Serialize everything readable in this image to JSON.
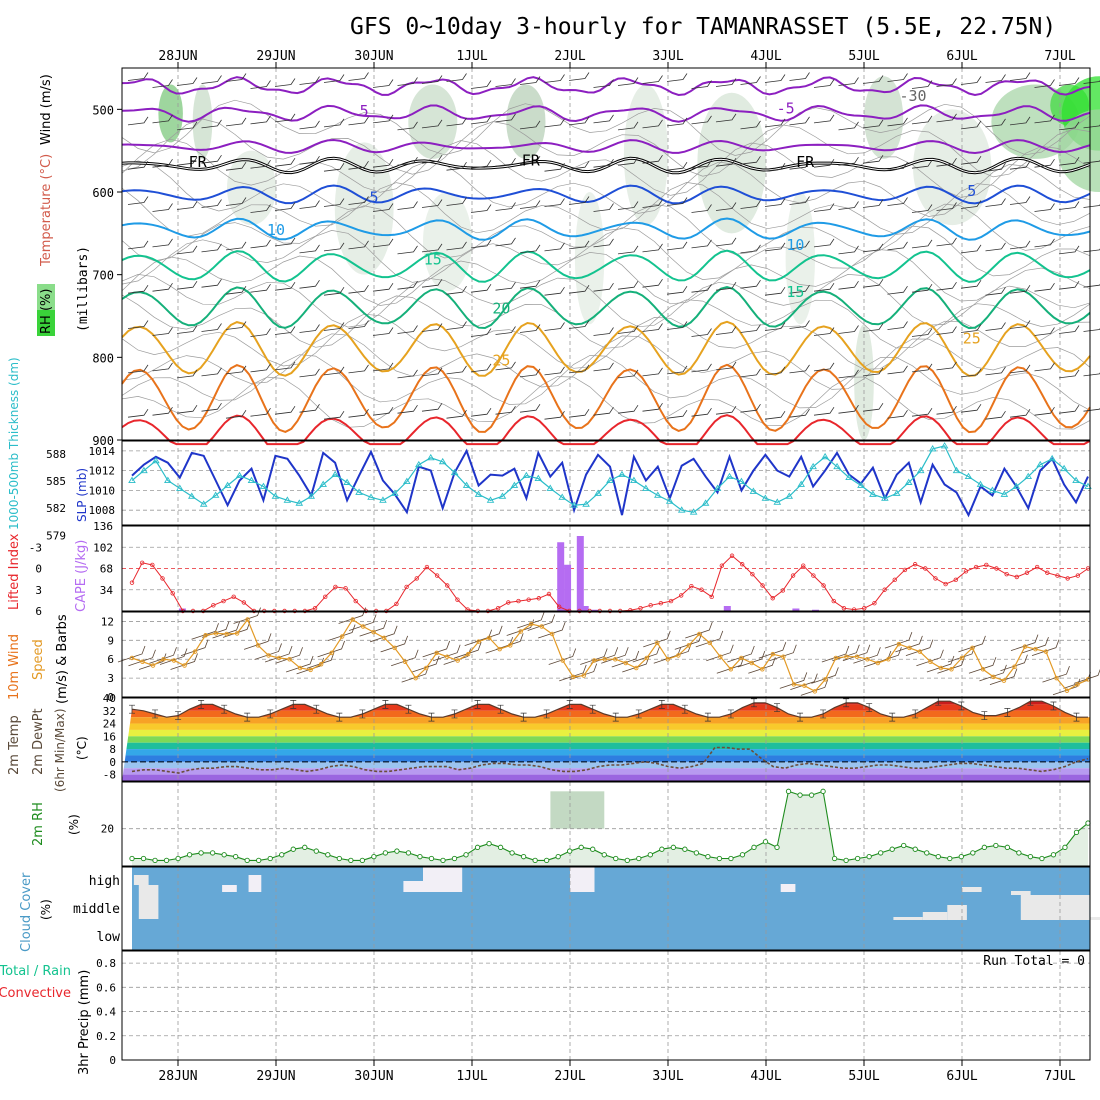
{
  "title": "GFS 0~10day 3-hourly for TAMANRASSET (5.5E, 22.75N)",
  "colors": {
    "purple": "#8c1fc0",
    "black": "#000000",
    "blue5": "#1f4fd6",
    "blue10": "#1f9be6",
    "green15": "#13c38f",
    "green20": "#15b07a",
    "orange25": "#e6a21f",
    "orange30": "#e8731b",
    "red": "#e8262c",
    "cyan": "#2bbdc9",
    "slpblue": "#1f35c9",
    "windorange": "#e39a25",
    "cape": "#b56cf2",
    "cloud": "#66a8d6",
    "rhgreen": "#1e8c1e",
    "grid": "#9a9a9a"
  },
  "chart_data": [
    {
      "type": "line",
      "name": "cross-section",
      "xlabels_top": [
        "28JUN",
        "29JUN",
        "30JUN",
        "1JUL",
        "2JUL",
        "3JUL",
        "4JUL",
        "5JUL",
        "6JUL",
        "7JUL"
      ],
      "ylabel_parts": [
        "RH (%)",
        "Temperature (°C)",
        "Wind (m/s)",
        "(millibars)"
      ],
      "yticks": [
        500,
        600,
        700,
        800,
        900
      ],
      "ylim": [
        900,
        450
      ],
      "contour_labels": [
        {
          "text": "5",
          "c": "purple",
          "x": 1.9,
          "p": 508
        },
        {
          "text": "-5",
          "c": "purple",
          "x": 6.2,
          "p": 505
        },
        {
          "text": "-30",
          "c": "gray",
          "x": 7.5,
          "p": 490
        },
        {
          "text": "FR",
          "c": "black",
          "x": 0.2,
          "p": 570
        },
        {
          "text": "FR",
          "c": "black",
          "x": 3.6,
          "p": 568
        },
        {
          "text": "FR",
          "c": "black",
          "x": 6.4,
          "p": 570
        },
        {
          "text": "5",
          "c": "blue5",
          "x": 2.0,
          "p": 613
        },
        {
          "text": "5",
          "c": "blue5",
          "x": 8.1,
          "p": 605
        },
        {
          "text": "10",
          "c": "blue10",
          "x": 1.0,
          "p": 652
        },
        {
          "text": "10",
          "c": "blue10",
          "x": 6.3,
          "p": 670
        },
        {
          "text": "15",
          "c": "green15",
          "x": 2.6,
          "p": 688
        },
        {
          "text": "15",
          "c": "green15",
          "x": 6.3,
          "p": 727
        },
        {
          "text": "20",
          "c": "green20",
          "x": 3.3,
          "p": 747
        },
        {
          "text": "25",
          "c": "orange25",
          "x": 3.3,
          "p": 810
        },
        {
          "text": "25",
          "c": "orange25",
          "x": 8.1,
          "p": 783
        }
      ]
    },
    {
      "type": "line",
      "name": "slp-thickness",
      "ylabel_left": "1000-500mb Thickness (dm)",
      "ylabel_right": "SLP (mb)",
      "yticks_left": [
        588,
        585,
        582,
        579
      ],
      "yticks_right": [
        1014,
        1012,
        1010,
        1008
      ],
      "ylim_right": [
        1006.5,
        1015
      ],
      "series": [
        {
          "name": "SLP (mb)",
          "color": "slpblue",
          "values": [
            1011.5,
            1012.6,
            1013.4,
            1012.8,
            1011.3,
            1013.8,
            1013.5,
            1011.0,
            1008.5,
            1011.0,
            1012.2,
            1009.0,
            1013.5,
            1013.2,
            1011.5,
            1009.5,
            1013.8,
            1012.8,
            1009.0,
            1011.5,
            1013.9,
            1011.0,
            1009.6,
            1007.8,
            1012.4,
            1012.0,
            1008.2,
            1011.8,
            1014.0,
            1010.5,
            1011.6,
            1011.5,
            1012.2,
            1009.2,
            1013.8,
            1011.4,
            1012.8,
            1008.0,
            1011.6,
            1013.6,
            1012.4,
            1007.5,
            1013.4,
            1011.0,
            1012.4,
            1009.2,
            1012.5,
            1013.2,
            1011.4,
            1009.8,
            1013.4,
            1010.0,
            1012.0,
            1013.6,
            1012.0,
            1011.4,
            1013.4,
            1010.4,
            1012.0,
            1013.8,
            1011.6,
            1010.7,
            1012.3,
            1009.2,
            1011.6,
            1012.8,
            1008.8,
            1012.6,
            1010.6,
            1009.8,
            1007.5,
            1010.4,
            1009.5,
            1012.2,
            1010.4,
            1008.2,
            1012.0,
            1013.2,
            1010.6,
            1008.8,
            1011.4
          ]
        },
        {
          "name": "1000-500mb Thickness (dm)",
          "color": "cyan",
          "values": [
            1011.0,
            1012.0,
            1013.0,
            1011.0,
            1010.2,
            1009.4,
            1008.6,
            1009.5,
            1010.5,
            1011.5,
            1011.0,
            1010.4,
            1009.4,
            1009.0,
            1008.7,
            1009.4,
            1010.6,
            1011.6,
            1010.8,
            1009.8,
            1009.3,
            1009.0,
            1009.7,
            1010.9,
            1012.6,
            1013.3,
            1012.9,
            1011.8,
            1010.5,
            1009.6,
            1009.0,
            1009.4,
            1010.5,
            1011.5,
            1011.2,
            1010.2,
            1009.3,
            1008.5,
            1008.6,
            1009.7,
            1011.0,
            1011.6,
            1011.0,
            1010.2,
            1009.5,
            1008.9,
            1008.0,
            1007.8,
            1008.7,
            1010.2,
            1011.4,
            1010.9,
            1009.9,
            1009.2,
            1008.8,
            1009.4,
            1010.6,
            1012.4,
            1013.4,
            1012.4,
            1011.3,
            1010.5,
            1009.6,
            1009.2,
            1009.7,
            1010.8,
            1012.0,
            1014.2,
            1014.5,
            1012.0,
            1011.4,
            1010.6,
            1010.0,
            1009.6,
            1010.4,
            1011.4,
            1012.6,
            1013.2,
            1012.2,
            1011.0,
            1010.4
          ]
        }
      ]
    },
    {
      "type": "line",
      "name": "lifted-index-cape",
      "ylabel_left": "Lifted Index",
      "ylabel_right": "CAPE (J/kg)",
      "yticks_left": [
        "-3",
        "0",
        "3",
        "6"
      ],
      "yticks_right": [
        136,
        102,
        68,
        34
      ],
      "ylim_cape": [
        0,
        136
      ],
      "series": [
        {
          "name": "Lifted Index",
          "color": "red",
          "values": [
            2.0,
            -0.8,
            -0.5,
            1.4,
            3.5,
            6.0,
            6.2,
            6.0,
            5.2,
            4.6,
            4.0,
            4.8,
            6.2,
            6.3,
            6.1,
            6.2,
            6.3,
            6.0,
            5.6,
            4.0,
            2.6,
            2.8,
            4.6,
            6.2,
            6.0,
            6.2,
            5.0,
            2.6,
            1.4,
            -0.2,
            1.0,
            2.4,
            4.4,
            5.8,
            6.3,
            6.4,
            5.6,
            4.8,
            4.6,
            4.4,
            4.2,
            3.6,
            5.4,
            6.3,
            6.2,
            6.0,
            6.1,
            6.3,
            6.2,
            5.9,
            5.6,
            5.2,
            4.9,
            4.6,
            3.8,
            2.5,
            3.0,
            4.0,
            -0.4,
            -1.8,
            -0.6,
            0.8,
            2.4,
            4.2,
            3.1,
            1.0,
            -0.4,
            1.0,
            2.4,
            4.6,
            5.6,
            5.8,
            5.6,
            4.9,
            3.0,
            1.6,
            0.2,
            -0.6,
            0.0,
            1.4,
            2.2,
            1.6,
            0.4,
            -0.2,
            -0.5,
            0.0,
            0.8,
            1.2,
            0.6,
            -0.2,
            0.6,
            1.0,
            1.4,
            1.0,
            0.0
          ]
        },
        {
          "name": "CAPE (J/kg)",
          "color": "cape",
          "type": "bar",
          "points": [
            [
              0.04,
              4
            ],
            [
              3.9,
              110
            ],
            [
              3.97,
              74
            ],
            [
              4.1,
              120
            ],
            [
              4.15,
              8
            ],
            [
              4.25,
              2
            ],
            [
              5.6,
              8
            ],
            [
              6.3,
              4
            ],
            [
              6.5,
              2
            ],
            [
              9.95,
              4
            ]
          ]
        }
      ]
    },
    {
      "type": "line",
      "name": "wind",
      "ylabel": "10m Wind Speed (m/s) & Barbs",
      "yticks": [
        12,
        9,
        6,
        3,
        0
      ],
      "ylim": [
        0,
        13.5
      ],
      "series": [
        {
          "name": "10m Wind Speed",
          "color": "windorange",
          "values": [
            6.2,
            5.6,
            5.0,
            6.0,
            5.8,
            5.0,
            7.2,
            9.8,
            10.1,
            10.0,
            10.1,
            12.3,
            8.2,
            6.6,
            6.2,
            6.0,
            4.6,
            4.3,
            5.2,
            7.0,
            9.6,
            12.3,
            11.2,
            10.3,
            9.4,
            7.8,
            5.6,
            3.0,
            4.6,
            7.0,
            6.4,
            5.8,
            6.8,
            8.8,
            9.4,
            7.6,
            8.2,
            10.4,
            11.6,
            11.2,
            10.0,
            5.8,
            3.2,
            3.4,
            5.8,
            6.0,
            6.0,
            5.4,
            4.6,
            6.2,
            8.6,
            6.0,
            6.6,
            8.2,
            10.0,
            8.6,
            6.4,
            4.4,
            6.2,
            5.4,
            4.4,
            6.8,
            6.4,
            2.0,
            1.8,
            0.9,
            2.8,
            6.2,
            6.4,
            6.4,
            6.0,
            5.4,
            6.0,
            8.4,
            7.8,
            7.2,
            5.6,
            4.6,
            4.4,
            6.2,
            7.8,
            4.4,
            3.2,
            2.6,
            4.8,
            8.0,
            7.6,
            7.2,
            3.0,
            1.0,
            2.0,
            2.8
          ]
        }
      ]
    },
    {
      "type": "area",
      "name": "temperature",
      "ylabel": "2m Temp 2m DewPt (6hr Min/Max) (°C)",
      "yticks": [
        40,
        32,
        24,
        16,
        8,
        0,
        -8
      ],
      "ylim": [
        -12,
        40
      ],
      "series": [
        {
          "name": "2m Temp",
          "values": [
            33,
            32,
            30,
            28,
            29,
            33,
            36,
            36,
            33,
            30,
            28,
            28,
            30,
            33,
            36,
            36,
            33,
            30,
            28,
            28,
            30,
            33,
            36,
            36,
            33,
            30,
            28,
            28,
            30,
            33,
            36,
            36,
            33,
            30,
            28,
            28,
            30,
            33,
            36,
            36,
            33,
            30,
            28,
            28,
            30,
            33,
            36,
            36,
            33,
            30,
            28,
            28,
            30,
            34,
            37,
            37,
            34,
            30,
            28,
            28,
            30,
            34,
            37,
            37,
            34,
            30,
            28,
            28,
            30,
            34,
            38,
            38,
            35,
            31,
            29,
            29,
            31,
            34,
            38,
            38,
            35,
            31,
            28,
            28
          ]
        },
        {
          "name": "2m DewPt",
          "values": [
            -6,
            -5,
            -5,
            -6,
            -7,
            -5,
            -4,
            -4,
            -3,
            -3,
            -4,
            -5,
            -5,
            -4,
            -5,
            -6,
            -5,
            -3,
            -2,
            -3,
            -5,
            -6,
            -6,
            -5,
            -4,
            -3,
            -3,
            -3,
            -5,
            -4,
            -2,
            -1,
            -1,
            -2,
            -2,
            -3,
            -5,
            -6,
            -6,
            -5,
            -3,
            -2,
            -2,
            -1,
            0,
            -1,
            -3,
            -4,
            -3,
            -1,
            9,
            9,
            8,
            8,
            2,
            -3,
            -4,
            -2,
            -1,
            -2,
            -3,
            -4,
            -4,
            -3,
            -2,
            -2,
            -3,
            -4,
            -4,
            -3,
            -2,
            -1,
            -1,
            -2,
            -3,
            -4,
            -4,
            -5,
            -6,
            -5,
            -3,
            0,
            2
          ]
        }
      ]
    },
    {
      "type": "area",
      "name": "relative-humidity",
      "ylabel": "2m RH (%)",
      "yticks": [
        20
      ],
      "ylim": [
        0,
        45
      ],
      "series": [
        {
          "name": "2m RH",
          "values": [
            4,
            4,
            3,
            3,
            4,
            6,
            7,
            7,
            6,
            5,
            3,
            3,
            4,
            6,
            9,
            10,
            8,
            6,
            4,
            3,
            3,
            5,
            7,
            8,
            7,
            5,
            4,
            3,
            4,
            6,
            10,
            12,
            10,
            7,
            5,
            3,
            3,
            5,
            8,
            10,
            9,
            6,
            4,
            3,
            4,
            6,
            9,
            10,
            9,
            7,
            5,
            4,
            4,
            6,
            10,
            13,
            10,
            40,
            38,
            38,
            40,
            4,
            3,
            4,
            5,
            7,
            9,
            11,
            9,
            7,
            5,
            4,
            5,
            7,
            10,
            11,
            10,
            7,
            5,
            4,
            6,
            10,
            18,
            23
          ]
        }
      ]
    },
    {
      "type": "bar",
      "name": "cloud-cover",
      "ylabel": "Cloud Cover (%)",
      "yticks": [
        "high",
        "middle",
        "low"
      ]
    },
    {
      "type": "bar",
      "name": "precipitation",
      "ylabel_left": "Total / Rain",
      "ylabel_right": "Convective",
      "ylabel_axis": "3hr Precip (mm)",
      "yticks": [
        "0.8",
        "0.6",
        "0.4",
        "0.2",
        "0"
      ],
      "ylim": [
        0,
        0.9
      ],
      "run_total": "Run Total = 0",
      "xlabels_bottom": [
        "28JUN",
        "29JUN",
        "30JUN",
        "1JUL",
        "2JUL",
        "3JUL",
        "4JUL",
        "5JUL",
        "6JUL",
        "7JUL"
      ]
    }
  ]
}
